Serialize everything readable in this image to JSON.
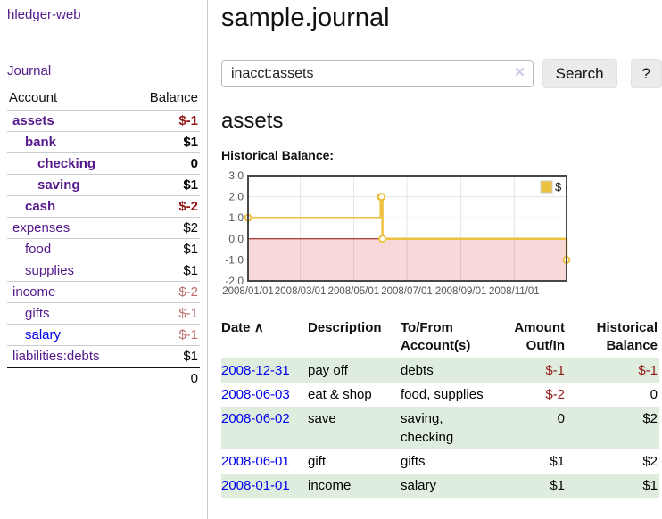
{
  "app_title": "hledger-web",
  "sidebar": {
    "journal_link": "Journal",
    "account_header": "Account",
    "balance_header": "Balance",
    "accounts": [
      {
        "name": "assets",
        "balance": "$-1"
      },
      {
        "name": "bank",
        "balance": "$1"
      },
      {
        "name": "checking",
        "balance": "0"
      },
      {
        "name": "saving",
        "balance": "$1"
      },
      {
        "name": "cash",
        "balance": "$-2"
      },
      {
        "name": "expenses",
        "balance": "$2"
      },
      {
        "name": "food",
        "balance": "$1"
      },
      {
        "name": "supplies",
        "balance": "$1"
      },
      {
        "name": "income",
        "balance": "$-2"
      },
      {
        "name": "gifts",
        "balance": "$-1"
      },
      {
        "name": "salary",
        "balance": "$-1"
      },
      {
        "name": "liabilities:debts",
        "balance": "$1"
      }
    ],
    "total_balance": "0"
  },
  "header": {
    "page_title": "sample.journal"
  },
  "search": {
    "value": "inacct:assets",
    "clear_icon": "✕",
    "button_label": "Search",
    "help_label": "?"
  },
  "account_page": {
    "heading": "assets"
  },
  "chart_data": {
    "type": "line",
    "title": "Historical Balance:",
    "x_range": [
      "2008-01-01",
      "2008-12-31"
    ],
    "ylim": [
      -2,
      3
    ],
    "y_ticks": [
      3,
      2,
      1,
      0,
      -1,
      -2
    ],
    "x_ticks": [
      "2008/01/01",
      "2008/03/01",
      "2008/05/01",
      "2008/07/01",
      "2008/09/01",
      "2008/11/01"
    ],
    "grid": true,
    "legend_position": "top-right",
    "zero_line_color": "#8b0000",
    "negative_region_color": "#f8d8d8",
    "series": [
      {
        "name": "$",
        "color": "#edc240",
        "steps": true,
        "points": [
          {
            "date": "2008-01-01",
            "value": 1
          },
          {
            "date": "2008-06-01",
            "value": 2
          },
          {
            "date": "2008-06-02",
            "value": 2
          },
          {
            "date": "2008-06-03",
            "value": 0
          },
          {
            "date": "2008-12-31",
            "value": -1
          }
        ]
      }
    ]
  },
  "register": {
    "headers": {
      "date": "Date",
      "description": "Description",
      "accounts": "To/From Account(s)",
      "amount": "Amount Out/In",
      "balance": "Historical Balance"
    },
    "sort_asc_icon": "∧",
    "rows": [
      {
        "date": "2008-12-31",
        "description": "pay off",
        "accounts": "debts",
        "amount": "$-1",
        "balance": "$-1"
      },
      {
        "date": "2008-06-03",
        "description": "eat & shop",
        "accounts": "food, supplies",
        "amount": "$-2",
        "balance": "0"
      },
      {
        "date": "2008-06-02",
        "description": "save",
        "accounts": "saving, checking",
        "amount": "0",
        "balance": "$2"
      },
      {
        "date": "2008-06-01",
        "description": "gift",
        "accounts": "gifts",
        "amount": "$1",
        "balance": "$2"
      },
      {
        "date": "2008-01-01",
        "description": "income",
        "accounts": "salary",
        "amount": "$1",
        "balance": "$1"
      }
    ]
  },
  "colors": {
    "accent_purple": "#551a8b",
    "link_blue": "#0000ee",
    "negative_strong": "#941616",
    "negative_soft": "#ba6e6e",
    "row_green": "#deedde",
    "chart_gold": "#edc240"
  }
}
